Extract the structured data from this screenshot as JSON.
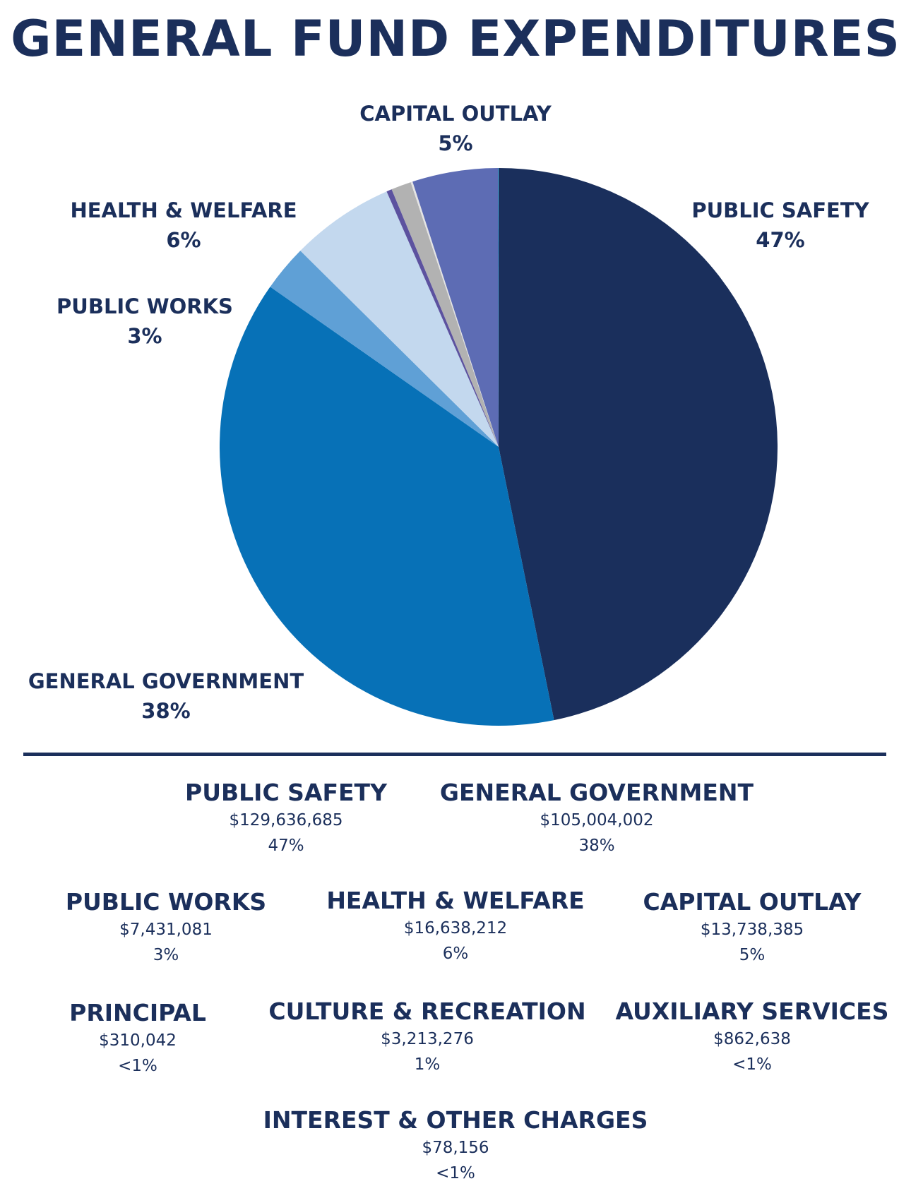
{
  "title": "GENERAL FUND EXPENDITURES",
  "colors": {
    "text": "#1b2f5b",
    "public_safety": "#1a2f5c",
    "general_government": "#0771b7",
    "public_works": "#5fa0d6",
    "health_welfare": "#c3d8ee",
    "auxiliary_services": "#5c529f",
    "culture_recreation": "#b2b2b2",
    "principal": "#e4e4e4",
    "capital_outlay": "#5d6cb4",
    "interest_other": "#2fb5e6"
  },
  "chart_data": {
    "type": "pie",
    "title": "GENERAL FUND EXPENDITURES",
    "start": "12 o'clock, clockwise",
    "slices": [
      {
        "key": "public_safety",
        "label": "PUBLIC SAFETY",
        "value": 129636685,
        "pct_label": "47%"
      },
      {
        "key": "general_government",
        "label": "GENERAL GOVERNMENT",
        "value": 105004002,
        "pct_label": "38%"
      },
      {
        "key": "public_works",
        "label": "PUBLIC WORKS",
        "value": 7431081,
        "pct_label": "3%"
      },
      {
        "key": "health_welfare",
        "label": "HEALTH & WELFARE",
        "value": 16638212,
        "pct_label": "6%"
      },
      {
        "key": "auxiliary_services",
        "label": "AUXILIARY SERVICES",
        "value": 862638,
        "pct_label": "<1%"
      },
      {
        "key": "culture_recreation",
        "label": "CULTURE & RECREATION",
        "value": 3213276,
        "pct_label": "1%"
      },
      {
        "key": "principal",
        "label": "PRINCIPAL",
        "value": 310042,
        "pct_label": "<1%"
      },
      {
        "key": "capital_outlay",
        "label": "CAPITAL OUTLAY",
        "value": 13738385,
        "pct_label": "5%"
      },
      {
        "key": "interest_other",
        "label": "INTEREST & OTHER CHARGES",
        "value": 78156,
        "pct_label": "<1%"
      }
    ]
  },
  "pie_labels": {
    "capital_outlay": {
      "name": "CAPITAL OUTLAY",
      "pct": "5%"
    },
    "health_welfare": {
      "name": "HEALTH & WELFARE",
      "pct": "6%"
    },
    "public_safety": {
      "name": "PUBLIC SAFETY",
      "pct": "47%"
    },
    "public_works": {
      "name": "PUBLIC WORKS",
      "pct": "3%"
    },
    "general_government": {
      "name": "GENERAL GOVERNMENT",
      "pct": "38%"
    }
  },
  "legend": {
    "public_safety": {
      "name": "PUBLIC SAFETY",
      "amount": "$129,636,685",
      "pct": "47%"
    },
    "general_government": {
      "name": "GENERAL GOVERNMENT",
      "amount": "$105,004,002",
      "pct": "38%"
    },
    "public_works": {
      "name": "PUBLIC WORKS",
      "amount": "$7,431,081",
      "pct": "3%"
    },
    "health_welfare": {
      "name": "HEALTH & WELFARE",
      "amount": "$16,638,212",
      "pct": "6%"
    },
    "capital_outlay": {
      "name": "CAPITAL OUTLAY",
      "amount": "$13,738,385",
      "pct": "5%"
    },
    "principal": {
      "name": "PRINCIPAL",
      "amount": "$310,042",
      "pct": "<1%"
    },
    "culture_recreation": {
      "name": "CULTURE & RECREATION",
      "amount": "$3,213,276",
      "pct": "1%"
    },
    "auxiliary_services": {
      "name": "AUXILIARY SERVICES",
      "amount": "$862,638",
      "pct": "<1%"
    },
    "interest_other": {
      "name": "INTEREST & OTHER CHARGES",
      "amount": "$78,156",
      "pct": "<1%"
    }
  }
}
